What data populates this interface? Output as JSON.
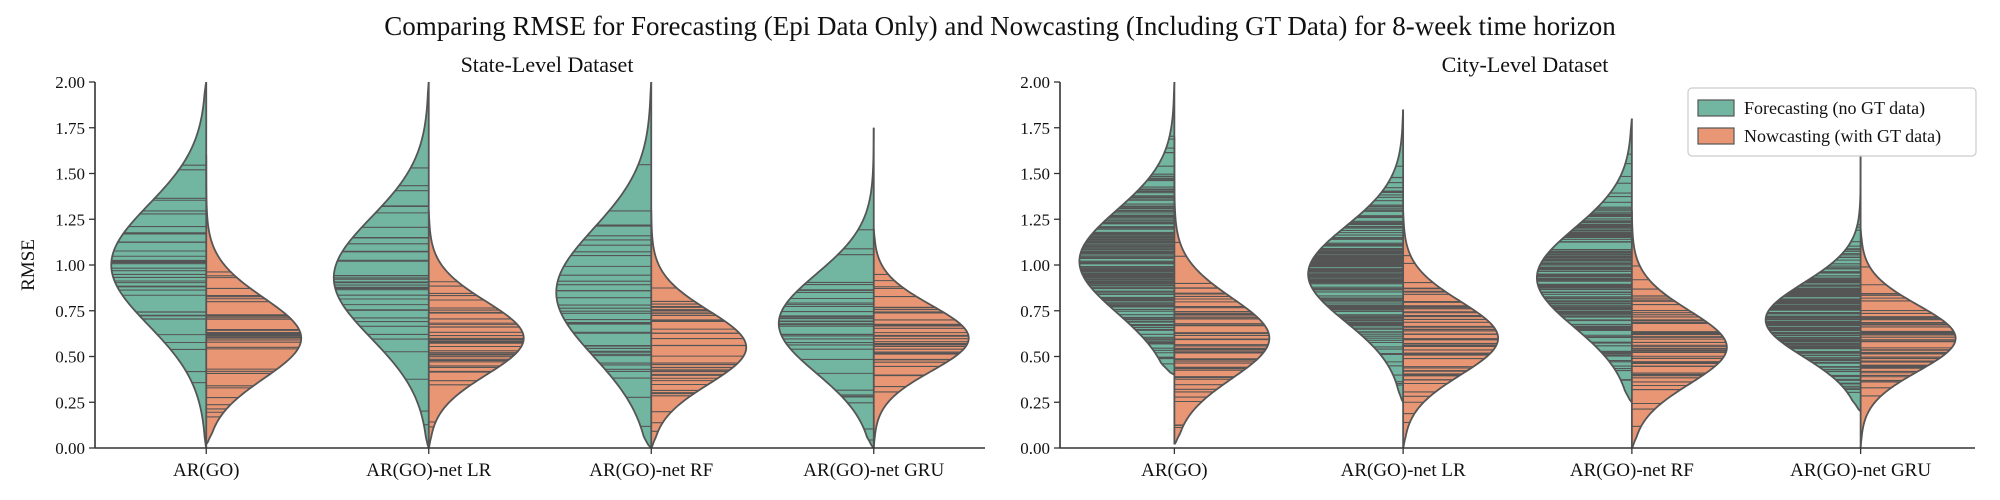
{
  "figure": {
    "title": "Comparing RMSE for Forecasting (Epi Data Only) and Nowcasting (Including GT Data) for 8-week time horizon"
  },
  "colors": {
    "forecast": "#72b6a1",
    "nowcast": "#e99675",
    "outline": "#555555",
    "stick": "#555555",
    "axis": "#333333"
  },
  "legend": {
    "placement": "top-right of City-Level panel",
    "items": [
      {
        "label": "Forecasting (no GT data)",
        "color": "#72b6a1"
      },
      {
        "label": "Nowcasting (with GT data)",
        "color": "#e99675"
      }
    ]
  },
  "chart_data": [
    {
      "type": "violin",
      "split": true,
      "inner": "stick",
      "title": "State-Level Dataset",
      "xlabel": "",
      "ylabel": "RMSE",
      "ylim": [
        0,
        2
      ],
      "yticks": [
        "0.00",
        "0.25",
        "0.50",
        "0.75",
        "1.00",
        "1.25",
        "1.50",
        "1.75",
        "2.00"
      ],
      "categories": [
        "AR(GO)",
        "AR(GO)-net LR",
        "AR(GO)-net RF",
        "AR(GO)-net GRU"
      ],
      "series": [
        {
          "name": "Forecasting (no GT data)",
          "distributions": [
            {
              "range": [
                0.0,
                2.0
              ],
              "mode": 1.0,
              "spread": 0.33,
              "obs_count": 40
            },
            {
              "range": [
                0.0,
                2.0
              ],
              "mode": 0.93,
              "spread": 0.33,
              "obs_count": 40
            },
            {
              "range": [
                0.0,
                2.0
              ],
              "mode": 0.85,
              "spread": 0.35,
              "obs_count": 40
            },
            {
              "range": [
                0.0,
                1.75
              ],
              "mode": 0.68,
              "spread": 0.27,
              "obs_count": 40
            }
          ]
        },
        {
          "name": "Nowcasting (with GT data)",
          "distributions": [
            {
              "range": [
                0.02,
                1.6
              ],
              "mode": 0.6,
              "spread": 0.22,
              "obs_count": 40
            },
            {
              "range": [
                0.0,
                1.3
              ],
              "mode": 0.6,
              "spread": 0.2,
              "obs_count": 40
            },
            {
              "range": [
                0.0,
                1.3
              ],
              "mode": 0.55,
              "spread": 0.2,
              "obs_count": 40
            },
            {
              "range": [
                0.0,
                1.2
              ],
              "mode": 0.6,
              "spread": 0.18,
              "obs_count": 40
            }
          ]
        }
      ]
    },
    {
      "type": "violin",
      "split": true,
      "inner": "stick",
      "title": "City-Level Dataset",
      "xlabel": "",
      "ylabel": "",
      "ylim": [
        0,
        2
      ],
      "yticks": [
        "0.00",
        "0.25",
        "0.50",
        "0.75",
        "1.00",
        "1.25",
        "1.50",
        "1.75",
        "2.00"
      ],
      "categories": [
        "AR(GO)",
        "AR(GO)-net LR",
        "AR(GO)-net RF",
        "AR(GO)-net GRU"
      ],
      "series": [
        {
          "name": "Forecasting (no GT data)",
          "distributions": [
            {
              "range": [
                0.4,
                2.0
              ],
              "mode": 1.02,
              "spread": 0.28,
              "obs_count": 180
            },
            {
              "range": [
                0.25,
                1.85
              ],
              "mode": 0.95,
              "spread": 0.26,
              "obs_count": 180
            },
            {
              "range": [
                0.25,
                1.8
              ],
              "mode": 0.93,
              "spread": 0.27,
              "obs_count": 180
            },
            {
              "range": [
                0.2,
                1.6
              ],
              "mode": 0.7,
              "spread": 0.2,
              "obs_count": 180
            }
          ]
        },
        {
          "name": "Nowcasting (with GT data)",
          "distributions": [
            {
              "range": [
                0.02,
                1.7
              ],
              "mode": 0.6,
              "spread": 0.22,
              "obs_count": 60
            },
            {
              "range": [
                0.0,
                1.3
              ],
              "mode": 0.6,
              "spread": 0.2,
              "obs_count": 60
            },
            {
              "range": [
                0.0,
                1.3
              ],
              "mode": 0.55,
              "spread": 0.2,
              "obs_count": 60
            },
            {
              "range": [
                0.0,
                1.2
              ],
              "mode": 0.6,
              "spread": 0.18,
              "obs_count": 60
            }
          ]
        }
      ]
    }
  ]
}
